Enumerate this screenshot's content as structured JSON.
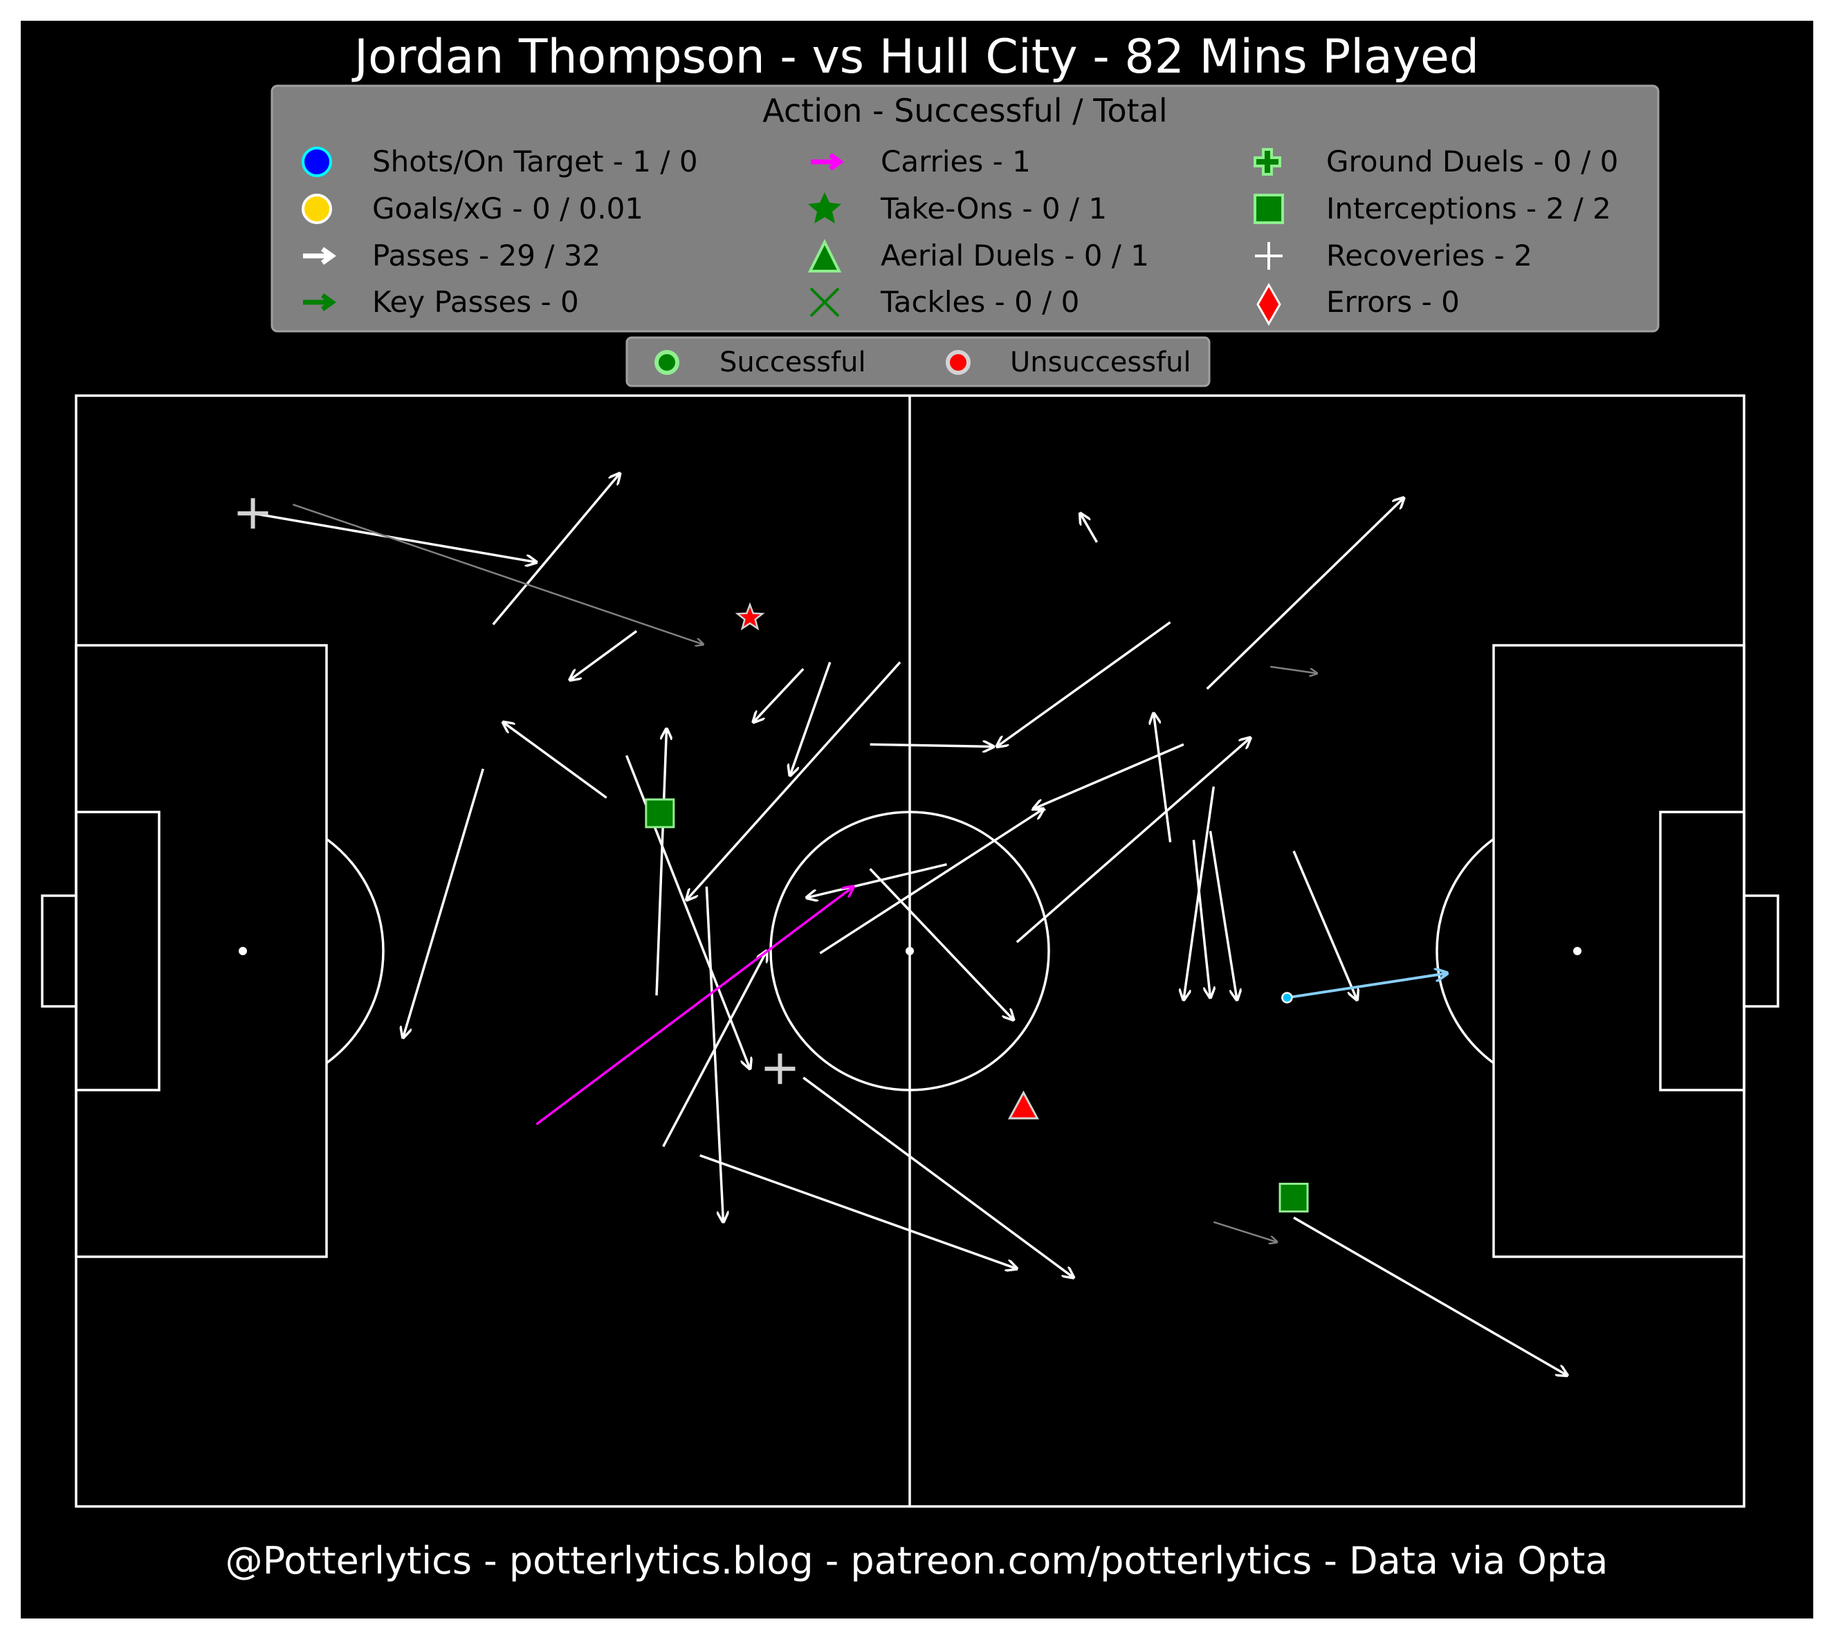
{
  "title": "Jordan Thompson - vs Hull City - 82 Mins Played",
  "footer": "@Potterlytics - potterlytics.blog - patreon.com/potterlytics - Data via Opta",
  "legend": {
    "heading": "Action - Successful / Total",
    "items": [
      {
        "label": "Shots/On Target - 1 / 0",
        "icon": "blue-circle-icon"
      },
      {
        "label": "Goals/xG - 0 / 0.01",
        "icon": "gold-circle-icon"
      },
      {
        "label": "Passes - 29 / 32",
        "icon": "white-arrow-icon"
      },
      {
        "label": "Key Passes - 0",
        "icon": "green-arrow-icon"
      },
      {
        "label": "Carries - 1",
        "icon": "magenta-arrow-icon"
      },
      {
        "label": "Take-Ons - 0 / 1",
        "icon": "star-icon"
      },
      {
        "label": "Aerial Duels - 0 / 1",
        "icon": "triangle-icon"
      },
      {
        "label": "Tackles - 0 / 0",
        "icon": "x-icon"
      },
      {
        "label": "Ground Duels - 0 / 0",
        "icon": "cross-icon"
      },
      {
        "label": "Interceptions - 2 / 2",
        "icon": "square-icon"
      },
      {
        "label": "Recoveries - 2",
        "icon": "plus-icon"
      },
      {
        "label": "Errors - 0",
        "icon": "diamond-icon"
      }
    ]
  },
  "outcome_legend": {
    "successful": "Successful",
    "unsuccessful": "Unsuccessful"
  },
  "colors": {
    "background": "#000000",
    "legend_box": "#808080",
    "pass": "#ffffff",
    "failed_pass": "#808080",
    "carry": "#ff00ff",
    "shot": "#87cefa",
    "success": "#008000",
    "fail": "#ff0000",
    "shot_marker": "#00bfff"
  },
  "chart_data": {
    "type": "scatter",
    "pitch": {
      "x_range": [
        0,
        100
      ],
      "y_range": [
        0,
        100
      ],
      "attacking_direction": "right"
    },
    "passes": [
      {
        "x": [
          10.6,
          27.6
        ],
        "y": [
          89.4,
          85.0
        ],
        "outcome": "successful"
      },
      {
        "x": [
          25.0,
          32.6
        ],
        "y": [
          79.4,
          93.0
        ],
        "outcome": "successful"
      },
      {
        "x": [
          33.6,
          29.6
        ],
        "y": [
          78.8,
          74.4
        ],
        "outcome": "successful"
      },
      {
        "x": [
          43.6,
          40.6
        ],
        "y": [
          75.4,
          70.6
        ],
        "outcome": "successful"
      },
      {
        "x": [
          45.2,
          42.8
        ],
        "y": [
          76.0,
          65.8
        ],
        "outcome": "successful"
      },
      {
        "x": [
          49.4,
          36.6
        ],
        "y": [
          76.0,
          54.6
        ],
        "outcome": "successful"
      },
      {
        "x": [
          31.8,
          25.6
        ],
        "y": [
          63.8,
          70.6
        ],
        "outcome": "successful"
      },
      {
        "x": [
          33.0,
          40.4
        ],
        "y": [
          67.6,
          39.4
        ],
        "outcome": "successful"
      },
      {
        "x": [
          24.4,
          19.6
        ],
        "y": [
          66.4,
          42.2
        ],
        "outcome": "successful"
      },
      {
        "x": [
          34.8,
          35.4
        ],
        "y": [
          46.0,
          70.0
        ],
        "outcome": "successful"
      },
      {
        "x": [
          37.8,
          38.8
        ],
        "y": [
          55.8,
          25.6
        ],
        "outcome": "successful"
      },
      {
        "x": [
          35.2,
          41.4
        ],
        "y": [
          32.4,
          50.0
        ],
        "outcome": "successful"
      },
      {
        "x": [
          37.4,
          56.4
        ],
        "y": [
          31.6,
          21.4
        ],
        "outcome": "successful"
      },
      {
        "x": [
          43.6,
          59.8
        ],
        "y": [
          38.6,
          20.6
        ],
        "outcome": "successful"
      },
      {
        "x": [
          47.6,
          56.2
        ],
        "y": [
          57.4,
          43.8
        ],
        "outcome": "successful"
      },
      {
        "x": [
          52.2,
          43.8
        ],
        "y": [
          57.8,
          54.8
        ],
        "outcome": "successful"
      },
      {
        "x": [
          47.6,
          55.0
        ],
        "y": [
          68.6,
          68.4
        ],
        "outcome": "successful"
      },
      {
        "x": [
          44.6,
          58.0
        ],
        "y": [
          49.8,
          62.8
        ],
        "outcome": "successful"
      },
      {
        "x": [
          65.6,
          55.2
        ],
        "y": [
          79.6,
          68.4
        ],
        "outcome": "successful"
      },
      {
        "x": [
          61.2,
          60.2
        ],
        "y": [
          86.8,
          89.4
        ],
        "outcome": "successful"
      },
      {
        "x": [
          67.8,
          79.6
        ],
        "y": [
          73.6,
          90.8
        ],
        "outcome": "successful"
      },
      {
        "x": [
          66.4,
          57.4
        ],
        "y": [
          68.6,
          62.8
        ],
        "outcome": "successful"
      },
      {
        "x": [
          56.4,
          70.4
        ],
        "y": [
          50.8,
          69.2
        ],
        "outcome": "successful"
      },
      {
        "x": [
          65.6,
          64.6
        ],
        "y": [
          59.8,
          71.4
        ],
        "outcome": "successful"
      },
      {
        "x": [
          68.2,
          66.4
        ],
        "y": [
          64.8,
          45.6
        ],
        "outcome": "successful"
      },
      {
        "x": [
          68.0,
          69.6
        ],
        "y": [
          60.8,
          45.6
        ],
        "outcome": "successful"
      },
      {
        "x": [
          67.0,
          68.0
        ],
        "y": [
          60.0,
          45.8
        ],
        "outcome": "successful"
      },
      {
        "x": [
          73.0,
          76.8
        ],
        "y": [
          59.0,
          45.6
        ],
        "outcome": "successful"
      },
      {
        "x": [
          73.0,
          89.4
        ],
        "y": [
          26.0,
          11.8
        ],
        "outcome": "successful"
      },
      {
        "x": [
          13.0,
          37.6
        ],
        "y": [
          90.2,
          77.6
        ],
        "outcome": "unsuccessful"
      },
      {
        "x": [
          71.6,
          74.4
        ],
        "y": [
          75.6,
          75.0
        ],
        "outcome": "unsuccessful"
      },
      {
        "x": [
          68.2,
          72.0
        ],
        "y": [
          25.6,
          23.8
        ],
        "outcome": "unsuccessful"
      }
    ],
    "carries": [
      {
        "x": [
          27.6,
          46.6
        ],
        "y": [
          34.4,
          55.8
        ]
      }
    ],
    "shots": [
      {
        "x": [
          72.6,
          82.2
        ],
        "y": [
          45.8,
          48.0
        ],
        "on_target": false,
        "xg": 0.01
      }
    ],
    "take_ons": [
      {
        "x": [
          40.4,
          80.0
        ],
        "outcome": "unsuccessful"
      }
    ],
    "aerial_duels": [
      {
        "x": 56.8,
        "y": 36.0,
        "outcome": "unsuccessful"
      }
    ],
    "interceptions": [
      {
        "x": 35.0,
        "y": 62.4,
        "outcome": "successful"
      },
      {
        "x": 73.0,
        "y": 27.8,
        "outcome": "successful"
      }
    ],
    "recoveries": [
      {
        "x": 10.6,
        "y": 89.4
      },
      {
        "x": 42.2,
        "y": 39.4
      }
    ]
  }
}
